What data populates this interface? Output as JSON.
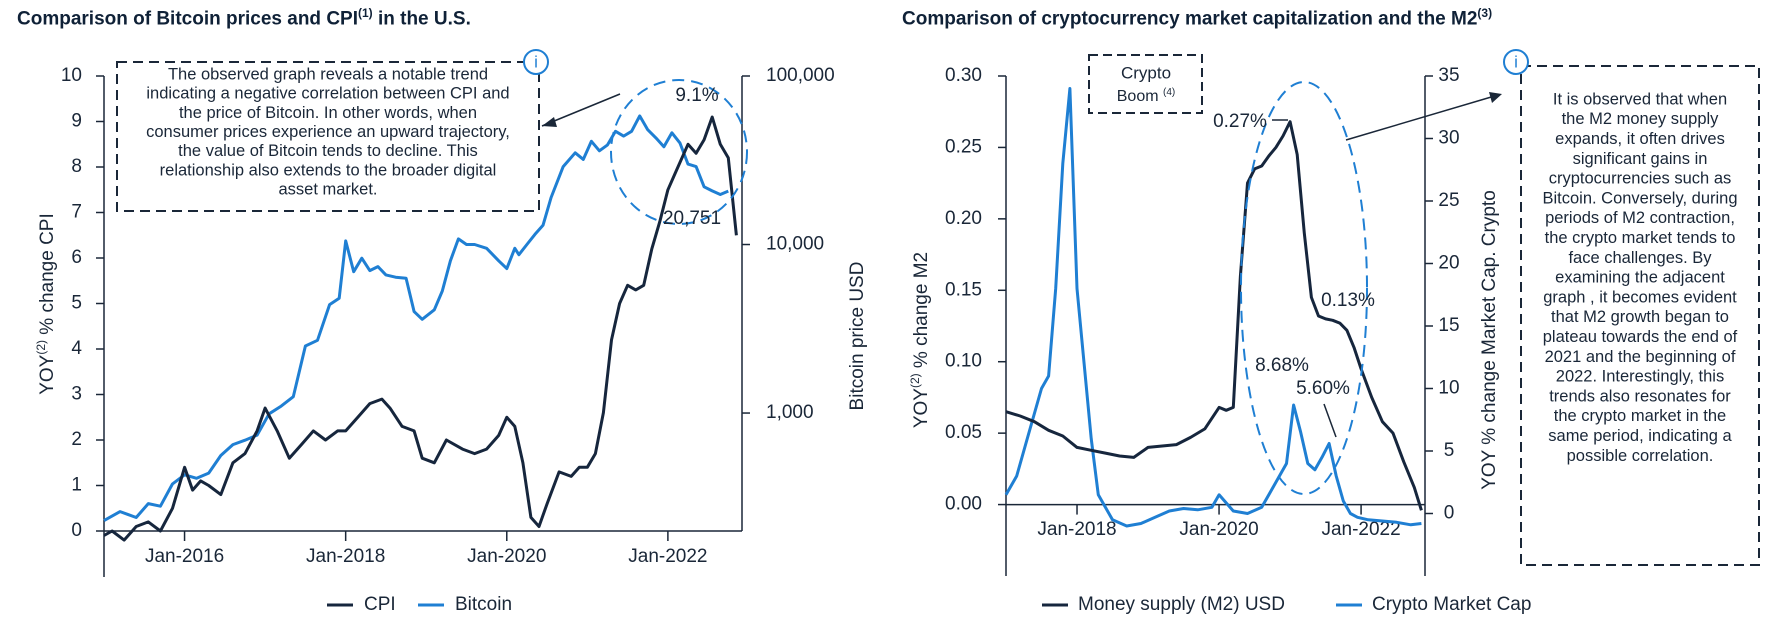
{
  "colors": {
    "cpi": "#16263d",
    "bitcoin": "#1f7fd3",
    "m2": "#16263d",
    "crypto": "#1f7fd3",
    "axis": "#1a2738",
    "highlight": "#1f7fd3"
  },
  "icons": [
    "info-icon",
    "info-icon"
  ],
  "chart_data": [
    {
      "type": "line",
      "title": "Comparison of Bitcoin prices and CPI",
      "title_sup": "(1)",
      "ylabel_left": "YOY(2) % change CPI",
      "ylabel_left_main": "% change CPI",
      "ylabel_left_prefix": "YOY",
      "ylabel_left_sup": "(2)",
      "ylabel_right": "Bitcoin price USD",
      "y_left_ticks": [
        "0",
        "1",
        "2",
        "3",
        "4",
        "5",
        "6",
        "7",
        "8",
        "9",
        "10"
      ],
      "y_left_range": [
        0,
        10
      ],
      "y_right_ticks": [
        "1,000",
        "10,000",
        "100,000"
      ],
      "y_right_range_log10": [
        2.3,
        5.0
      ],
      "x_range": [
        2015.0,
        2022.92
      ],
      "x_ticks": [
        {
          "value": 2016.0,
          "label": "Jan-2016"
        },
        {
          "value": 2018.0,
          "label": "Jan-2018"
        },
        {
          "value": 2020.0,
          "label": "Jan-2020"
        },
        {
          "value": 2022.0,
          "label": "Jan-2022"
        }
      ],
      "legend": [
        "CPI",
        "Bitcoin"
      ],
      "annotation": "The observed graph reveals a notable trend indicating a negative correlation between CPI and the price of Bitcoin. In other words, when consumer prices experience an upward trajectory, the value of Bitcoin tends to decline. This relationship also extends to the broader digital asset market.",
      "label_cpi_peak": "9.1%",
      "label_btc_value": "20,751",
      "series": [
        {
          "name": "CPI",
          "x": [
            2015.0,
            2015.1,
            2015.25,
            2015.4,
            2015.55,
            2015.7,
            2015.85,
            2016.0,
            2016.1,
            2016.2,
            2016.3,
            2016.45,
            2016.6,
            2016.75,
            2016.9,
            2017.0,
            2017.15,
            2017.3,
            2017.45,
            2017.6,
            2017.75,
            2017.9,
            2018.0,
            2018.15,
            2018.3,
            2018.45,
            2018.55,
            2018.7,
            2018.85,
            2018.95,
            2019.1,
            2019.25,
            2019.45,
            2019.6,
            2019.75,
            2019.9,
            2020.0,
            2020.1,
            2020.2,
            2020.3,
            2020.4,
            2020.5,
            2020.65,
            2020.8,
            2020.9,
            2021.0,
            2021.1,
            2021.2,
            2021.3,
            2021.4,
            2021.5,
            2021.6,
            2021.7,
            2021.8,
            2021.9,
            2022.0,
            2022.1,
            2022.25,
            2022.35,
            2022.45,
            2022.55,
            2022.65,
            2022.75,
            2022.85
          ],
          "values": [
            -0.1,
            0.0,
            -0.2,
            0.1,
            0.2,
            0.0,
            0.5,
            1.4,
            0.9,
            1.1,
            1.0,
            0.8,
            1.5,
            1.7,
            2.2,
            2.7,
            2.2,
            1.6,
            1.9,
            2.2,
            2.0,
            2.2,
            2.2,
            2.5,
            2.8,
            2.9,
            2.7,
            2.3,
            2.2,
            1.6,
            1.5,
            2.0,
            1.8,
            1.7,
            1.8,
            2.1,
            2.5,
            2.3,
            1.5,
            0.3,
            0.1,
            0.6,
            1.3,
            1.2,
            1.4,
            1.4,
            1.7,
            2.6,
            4.2,
            5.0,
            5.4,
            5.3,
            5.4,
            6.2,
            6.8,
            7.5,
            7.9,
            8.5,
            8.3,
            8.6,
            9.1,
            8.5,
            8.2,
            6.5
          ]
        },
        {
          "name": "Bitcoin",
          "x": [
            2015.0,
            2015.2,
            2015.4,
            2015.55,
            2015.7,
            2015.85,
            2016.0,
            2016.15,
            2016.3,
            2016.45,
            2016.6,
            2016.75,
            2016.9,
            2017.05,
            2017.2,
            2017.35,
            2017.5,
            2017.65,
            2017.8,
            2017.92,
            2018.0,
            2018.1,
            2018.2,
            2018.3,
            2018.4,
            2018.5,
            2018.62,
            2018.75,
            2018.85,
            2018.95,
            2019.1,
            2019.2,
            2019.3,
            2019.4,
            2019.5,
            2019.6,
            2019.75,
            2019.9,
            2020.0,
            2020.1,
            2020.15,
            2020.25,
            2020.35,
            2020.45,
            2020.55,
            2020.7,
            2020.85,
            2020.95,
            2021.05,
            2021.15,
            2021.25,
            2021.35,
            2021.45,
            2021.55,
            2021.65,
            2021.75,
            2021.85,
            2021.95,
            2022.05,
            2022.15,
            2022.25,
            2022.35,
            2022.45,
            2022.55,
            2022.65,
            2022.75
          ],
          "values": [
            230,
            260,
            240,
            290,
            280,
            380,
            430,
            410,
            440,
            560,
            650,
            690,
            740,
            990,
            1100,
            1250,
            2500,
            2700,
            4400,
            4800,
            10500,
            6900,
            8300,
            7000,
            7400,
            6600,
            6400,
            6300,
            4000,
            3600,
            4100,
            5300,
            8000,
            10800,
            10000,
            10000,
            9500,
            8000,
            7200,
            9500,
            8700,
            10000,
            11500,
            13000,
            19000,
            29000,
            35000,
            32000,
            41000,
            36000,
            39000,
            47000,
            44000,
            47000,
            58000,
            48000,
            43000,
            38000,
            46000,
            40000,
            30000,
            29000,
            22000,
            20800,
            19800,
            20751
          ]
        }
      ]
    },
    {
      "type": "line",
      "title": "Comparison of cryptocurrency market capitalization and the M2",
      "title_sup": "(3)",
      "ylabel_left": "YOY(2) % change M2",
      "ylabel_left_main": "% change M2",
      "ylabel_left_prefix": "YOY",
      "ylabel_left_sup": "(2)",
      "ylabel_right": "YOY % change Market Cap. Crypto",
      "y_left_ticks": [
        "0.00",
        "0.05",
        "0.10",
        "0.15",
        "0.20",
        "0.25",
        "0.30"
      ],
      "y_left_range": [
        -0.05,
        0.3
      ],
      "y_right_ticks": [
        "0",
        "5",
        "10",
        "15",
        "20",
        "25",
        "30",
        "35"
      ],
      "y_right_range": [
        -5,
        35
      ],
      "x_range": [
        2017.0,
        2022.9
      ],
      "x_ticks": [
        {
          "value": 2018.0,
          "label": "Jan-2018"
        },
        {
          "value": 2020.0,
          "label": "Jan-2020"
        },
        {
          "value": 2022.0,
          "label": "Jan-2022"
        }
      ],
      "legend": [
        "Money supply (M2) USD",
        "Crypto Market Cap"
      ],
      "annotation": "It is observed that when the M2 money supply expands, it often drives significant gains in cryptocurrencies such as Bitcoin. Conversely, during periods of M2 contraction, the crypto market tends to face challenges. By examining the adjacent graph , it becomes evident that M2 growth began to plateau towards the end of 2021 and the beginning of 2022. Interestingly, this trends also resonates for the crypto market in the same period, indicating a possible correlation.",
      "boom_label_main": "Crypto",
      "boom_label_line2": "Boom",
      "boom_label_sup": "(4)",
      "label_m2_peak": "0.27%",
      "label_m2_recent": "0.13%",
      "label_crypto_peak": "8.68%",
      "label_crypto_recent": "5.60%",
      "series": [
        {
          "name": "Money supply (M2) USD",
          "x": [
            2017.0,
            2017.2,
            2017.4,
            2017.6,
            2017.8,
            2018.0,
            2018.2,
            2018.4,
            2018.6,
            2018.8,
            2019.0,
            2019.2,
            2019.4,
            2019.6,
            2019.8,
            2020.0,
            2020.1,
            2020.2,
            2020.3,
            2020.4,
            2020.5,
            2020.6,
            2020.7,
            2020.8,
            2020.9,
            2021.0,
            2021.1,
            2021.2,
            2021.3,
            2021.4,
            2021.5,
            2021.6,
            2021.7,
            2021.8,
            2021.9,
            2022.0,
            2022.15,
            2022.3,
            2022.45,
            2022.6,
            2022.75,
            2022.85
          ],
          "values": [
            0.065,
            0.062,
            0.058,
            0.052,
            0.048,
            0.04,
            0.038,
            0.036,
            0.034,
            0.033,
            0.04,
            0.041,
            0.042,
            0.047,
            0.053,
            0.068,
            0.066,
            0.068,
            0.16,
            0.225,
            0.235,
            0.237,
            0.244,
            0.25,
            0.258,
            0.268,
            0.245,
            0.19,
            0.145,
            0.132,
            0.13,
            0.129,
            0.127,
            0.122,
            0.11,
            0.095,
            0.075,
            0.058,
            0.05,
            0.03,
            0.012,
            -0.004
          ]
        },
        {
          "name": "Crypto Market Cap",
          "x": [
            2017.0,
            2017.15,
            2017.3,
            2017.4,
            2017.5,
            2017.6,
            2017.7,
            2017.8,
            2017.9,
            2018.0,
            2018.1,
            2018.2,
            2018.3,
            2018.4,
            2018.5,
            2018.7,
            2018.9,
            2019.1,
            2019.3,
            2019.5,
            2019.7,
            2019.9,
            2020.0,
            2020.2,
            2020.4,
            2020.6,
            2020.8,
            2020.95,
            2021.05,
            2021.15,
            2021.25,
            2021.35,
            2021.45,
            2021.55,
            2021.65,
            2021.75,
            2021.85,
            2021.95,
            2022.1,
            2022.3,
            2022.5,
            2022.7,
            2022.85
          ],
          "values": [
            1.5,
            3.0,
            6.0,
            8.0,
            10.0,
            11.0,
            18.0,
            28.0,
            34.0,
            18.0,
            12.0,
            6.0,
            1.5,
            0.5,
            -0.5,
            -1.0,
            -0.8,
            -0.3,
            0.2,
            0.4,
            0.3,
            0.5,
            1.5,
            0.2,
            0.0,
            0.5,
            2.5,
            4.0,
            8.68,
            6.5,
            4.0,
            3.5,
            4.5,
            5.6,
            3.0,
            1.0,
            0.0,
            -0.3,
            -0.5,
            -0.6,
            -0.7,
            -0.9,
            -0.8
          ]
        }
      ]
    }
  ]
}
